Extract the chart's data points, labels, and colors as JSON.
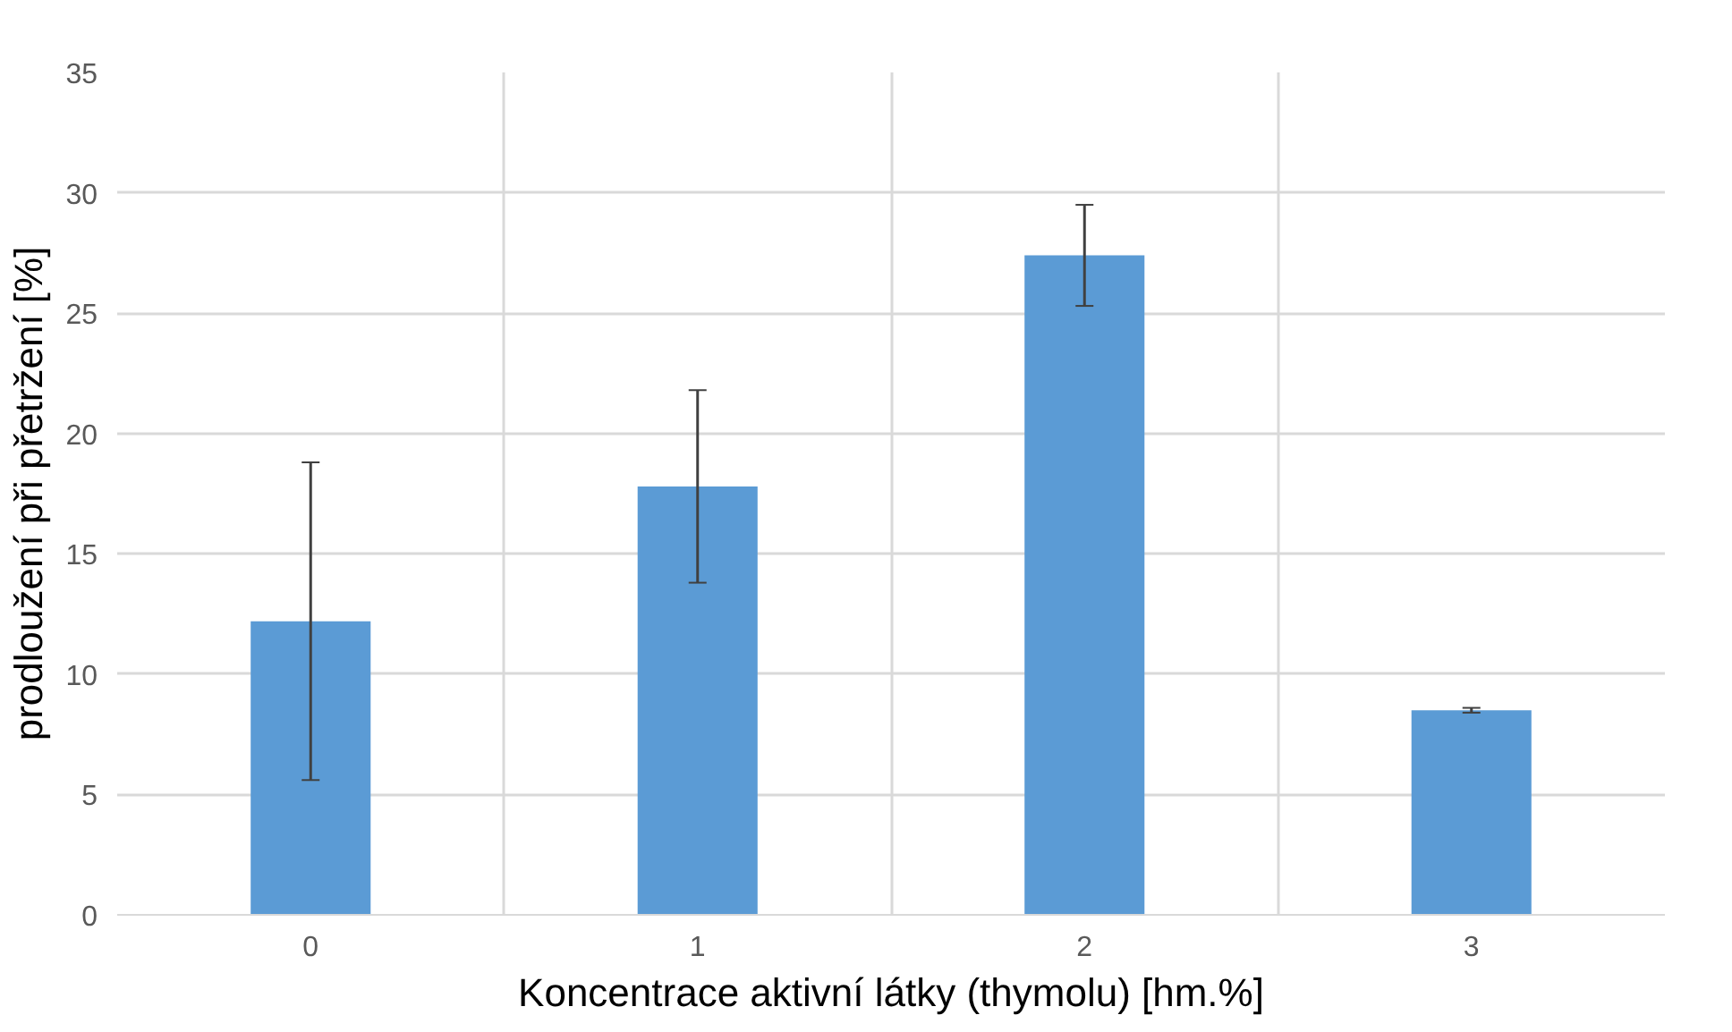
{
  "chart_data": {
    "type": "bar",
    "xlabel": "Koncentrace aktivní látky (thymolu) [hm.%]",
    "ylabel": "prodloužení při přetržení [%]",
    "categories": [
      "0",
      "1",
      "2",
      "3"
    ],
    "values": [
      12.2,
      17.8,
      27.4,
      8.5
    ],
    "errors": [
      6.6,
      4.0,
      2.1,
      0.1
    ],
    "color": "#5b9bd5",
    "ylim": [
      0,
      35
    ],
    "yticks": [
      0,
      5,
      10,
      15,
      20,
      25,
      30,
      35
    ],
    "grid": true
  }
}
